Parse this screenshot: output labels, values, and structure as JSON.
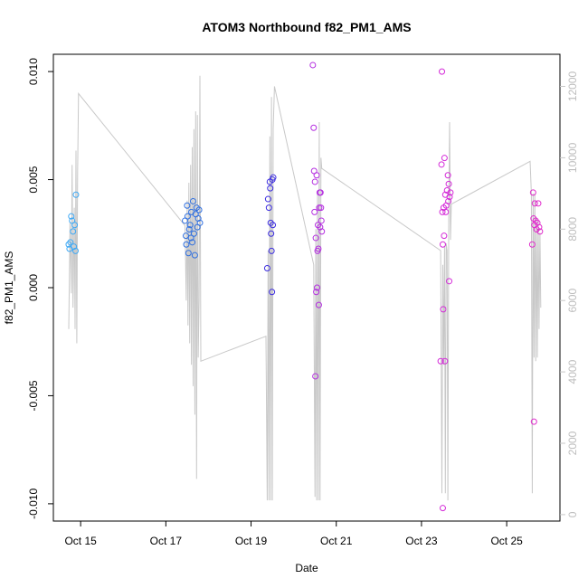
{
  "chart_data": {
    "type": "scatter",
    "title": "ATOM3 Northbound f82_PM1_AMS",
    "xlabel": "Date",
    "ylabel": "f82_PM1_AMS",
    "x_ticks": [
      {
        "label": "Oct 15",
        "day": 15
      },
      {
        "label": "Oct 17",
        "day": 17
      },
      {
        "label": "Oct 19",
        "day": 19
      },
      {
        "label": "Oct 21",
        "day": 21
      },
      {
        "label": "Oct 23",
        "day": 23
      },
      {
        "label": "Oct 25",
        "day": 25
      }
    ],
    "xlim": [
      14.36,
      26.25
    ],
    "ylim": [
      -0.0108,
      0.0108
    ],
    "y_ticks": [
      {
        "label": "-0.010",
        "value": -0.01
      },
      {
        "label": "-0.005",
        "value": -0.005
      },
      {
        "label": "0.000",
        "value": 0.0
      },
      {
        "label": "0.005",
        "value": 0.005
      },
      {
        "label": "0.010",
        "value": 0.01
      }
    ],
    "y2_ticks": [
      {
        "label": "0",
        "value": 0
      },
      {
        "label": "2000",
        "value": 2000
      },
      {
        "label": "4000",
        "value": 4000
      },
      {
        "label": "6000",
        "value": 6000
      },
      {
        "label": "8000",
        "value": 8000
      },
      {
        "label": "10000",
        "value": 10000
      },
      {
        "label": "12000",
        "value": 12000
      }
    ],
    "y2lim": [
      -180,
      12900
    ],
    "altitude_color": "#c8c8c8",
    "altitude_series": [
      [
        14.72,
        5200
      ],
      [
        14.75,
        8200
      ],
      [
        14.78,
        6200
      ],
      [
        14.8,
        9800
      ],
      [
        14.82,
        5800
      ],
      [
        14.85,
        8600
      ],
      [
        14.87,
        5200
      ],
      [
        14.89,
        10200
      ],
      [
        14.91,
        4800
      ],
      [
        14.93,
        9600
      ],
      [
        14.95,
        11800
      ],
      [
        17.45,
        8100
      ],
      [
        17.48,
        6000
      ],
      [
        17.5,
        8800
      ],
      [
        17.52,
        5300
      ],
      [
        17.54,
        9300
      ],
      [
        17.56,
        4800
      ],
      [
        17.58,
        9800
      ],
      [
        17.6,
        4200
      ],
      [
        17.62,
        10300
      ],
      [
        17.64,
        3600
      ],
      [
        17.66,
        10800
      ],
      [
        17.68,
        2800
      ],
      [
        17.7,
        11300
      ],
      [
        17.72,
        1000
      ],
      [
        17.74,
        11200
      ],
      [
        17.76,
        4400
      ],
      [
        17.78,
        6000
      ],
      [
        17.8,
        12300
      ],
      [
        17.82,
        4300
      ],
      [
        19.35,
        5000
      ],
      [
        19.38,
        400
      ],
      [
        19.4,
        7400
      ],
      [
        19.42,
        400
      ],
      [
        19.44,
        10600
      ],
      [
        19.46,
        400
      ],
      [
        19.48,
        11700
      ],
      [
        19.5,
        400
      ],
      [
        19.52,
        10800
      ],
      [
        19.55,
        12000
      ],
      [
        20.47,
        7000
      ],
      [
        20.5,
        500
      ],
      [
        20.52,
        8000
      ],
      [
        20.54,
        400
      ],
      [
        20.56,
        9000
      ],
      [
        20.58,
        400
      ],
      [
        20.6,
        11000
      ],
      [
        20.62,
        400
      ],
      [
        20.64,
        10000
      ],
      [
        20.66,
        9700
      ],
      [
        23.45,
        7400
      ],
      [
        23.48,
        600
      ],
      [
        23.5,
        7000
      ],
      [
        23.52,
        4200
      ],
      [
        23.54,
        7500
      ],
      [
        23.56,
        600
      ],
      [
        23.58,
        7600
      ],
      [
        23.6,
        7400
      ],
      [
        23.62,
        400
      ],
      [
        23.64,
        8600
      ],
      [
        23.66,
        11000
      ],
      [
        23.68,
        7700
      ],
      [
        23.7,
        8700
      ],
      [
        25.55,
        9900
      ],
      [
        25.58,
        9000
      ],
      [
        25.6,
        600
      ],
      [
        25.62,
        9000
      ],
      [
        25.64,
        4400
      ],
      [
        25.66,
        9000
      ],
      [
        25.68,
        4300
      ],
      [
        25.7,
        8300
      ],
      [
        25.72,
        4400
      ],
      [
        25.74,
        8200
      ],
      [
        25.76,
        5200
      ],
      [
        25.78,
        7900
      ],
      [
        25.8,
        5800
      ]
    ],
    "points": [
      {
        "x": 14.72,
        "y": 0.002,
        "color": "#3fa9f5"
      },
      {
        "x": 14.74,
        "y": 0.0018,
        "color": "#3fa9f5"
      },
      {
        "x": 14.76,
        "y": 0.0021,
        "color": "#3fa9f5"
      },
      {
        "x": 14.78,
        "y": 0.0033,
        "color": "#3fa9f5"
      },
      {
        "x": 14.8,
        "y": 0.0031,
        "color": "#3fa9f5"
      },
      {
        "x": 14.82,
        "y": 0.0026,
        "color": "#3fa9f5"
      },
      {
        "x": 14.84,
        "y": 0.0019,
        "color": "#3fa9f5"
      },
      {
        "x": 14.86,
        "y": 0.0029,
        "color": "#3fa9f5"
      },
      {
        "x": 14.88,
        "y": 0.0017,
        "color": "#3fa9f5"
      },
      {
        "x": 14.89,
        "y": 0.0043,
        "color": "#3fa9f5"
      },
      {
        "x": 17.45,
        "y": 0.0031,
        "color": "#2f6fe0"
      },
      {
        "x": 17.47,
        "y": 0.0024,
        "color": "#2f6fe0"
      },
      {
        "x": 17.48,
        "y": 0.002,
        "color": "#2f6fe0"
      },
      {
        "x": 17.5,
        "y": 0.0038,
        "color": "#2f6fe0"
      },
      {
        "x": 17.51,
        "y": 0.0033,
        "color": "#2f6fe0"
      },
      {
        "x": 17.53,
        "y": 0.0016,
        "color": "#2f6fe0"
      },
      {
        "x": 17.55,
        "y": 0.0027,
        "color": "#2f6fe0"
      },
      {
        "x": 17.57,
        "y": 0.0029,
        "color": "#2f6fe0"
      },
      {
        "x": 17.59,
        "y": 0.0023,
        "color": "#2f6fe0"
      },
      {
        "x": 17.6,
        "y": 0.0035,
        "color": "#2f6fe0"
      },
      {
        "x": 17.62,
        "y": 0.0021,
        "color": "#2f6fe0"
      },
      {
        "x": 17.64,
        "y": 0.004,
        "color": "#2f6fe0"
      },
      {
        "x": 17.66,
        "y": 0.0025,
        "color": "#2f6fe0"
      },
      {
        "x": 17.68,
        "y": 0.0015,
        "color": "#2f6fe0"
      },
      {
        "x": 17.7,
        "y": 0.0034,
        "color": "#2f6fe0"
      },
      {
        "x": 17.72,
        "y": 0.0037,
        "color": "#2f6fe0"
      },
      {
        "x": 17.74,
        "y": 0.0028,
        "color": "#2f6fe0"
      },
      {
        "x": 17.76,
        "y": 0.0032,
        "color": "#2f6fe0"
      },
      {
        "x": 17.78,
        "y": 0.0036,
        "color": "#2f6fe0"
      },
      {
        "x": 17.8,
        "y": 0.003,
        "color": "#2f6fe0"
      },
      {
        "x": 19.38,
        "y": 0.0009,
        "color": "#3c2de0"
      },
      {
        "x": 19.4,
        "y": 0.0041,
        "color": "#3c2de0"
      },
      {
        "x": 19.42,
        "y": 0.0037,
        "color": "#3c2de0"
      },
      {
        "x": 19.44,
        "y": 0.0049,
        "color": "#3c2de0"
      },
      {
        "x": 19.45,
        "y": 0.0046,
        "color": "#3c2de0"
      },
      {
        "x": 19.46,
        "y": 0.003,
        "color": "#3c2de0"
      },
      {
        "x": 19.47,
        "y": 0.0025,
        "color": "#3c2de0"
      },
      {
        "x": 19.48,
        "y": 0.0017,
        "color": "#3c2de0"
      },
      {
        "x": 19.49,
        "y": -0.0002,
        "color": "#3c2de0"
      },
      {
        "x": 19.5,
        "y": 0.005,
        "color": "#3c2de0"
      },
      {
        "x": 19.51,
        "y": 0.0029,
        "color": "#3c2de0"
      },
      {
        "x": 19.52,
        "y": 0.0051,
        "color": "#3c2de0"
      },
      {
        "x": 20.45,
        "y": 0.0103,
        "color": "#b42de0"
      },
      {
        "x": 20.47,
        "y": 0.0074,
        "color": "#b42de0"
      },
      {
        "x": 20.48,
        "y": 0.0054,
        "color": "#b42de0"
      },
      {
        "x": 20.49,
        "y": 0.0035,
        "color": "#b42de0"
      },
      {
        "x": 20.5,
        "y": 0.0049,
        "color": "#b42de0"
      },
      {
        "x": 20.51,
        "y": -0.0041,
        "color": "#b42de0"
      },
      {
        "x": 20.52,
        "y": 0.0023,
        "color": "#b42de0"
      },
      {
        "x": 20.53,
        "y": -0.0002,
        "color": "#b42de0"
      },
      {
        "x": 20.54,
        "y": 0.0052,
        "color": "#b42de0"
      },
      {
        "x": 20.55,
        "y": 0.0,
        "color": "#b42de0"
      },
      {
        "x": 20.56,
        "y": 0.0017,
        "color": "#b42de0"
      },
      {
        "x": 20.57,
        "y": 0.0029,
        "color": "#b42de0"
      },
      {
        "x": 20.58,
        "y": 0.0018,
        "color": "#b42de0"
      },
      {
        "x": 20.59,
        "y": -0.0008,
        "color": "#b42de0"
      },
      {
        "x": 20.6,
        "y": 0.0037,
        "color": "#b42de0"
      },
      {
        "x": 20.61,
        "y": 0.0044,
        "color": "#b42de0"
      },
      {
        "x": 20.62,
        "y": 0.0028,
        "color": "#b42de0"
      },
      {
        "x": 20.63,
        "y": 0.0044,
        "color": "#b42de0"
      },
      {
        "x": 20.64,
        "y": 0.0037,
        "color": "#b42de0"
      },
      {
        "x": 20.65,
        "y": 0.0031,
        "color": "#b42de0"
      },
      {
        "x": 20.66,
        "y": 0.0026,
        "color": "#b42de0"
      },
      {
        "x": 23.45,
        "y": -0.0034,
        "color": "#d42ad8"
      },
      {
        "x": 23.47,
        "y": 0.0057,
        "color": "#d42ad8"
      },
      {
        "x": 23.48,
        "y": 0.01,
        "color": "#d42ad8"
      },
      {
        "x": 23.49,
        "y": 0.0035,
        "color": "#d42ad8"
      },
      {
        "x": 23.5,
        "y": 0.002,
        "color": "#d42ad8"
      },
      {
        "x": 23.51,
        "y": -0.001,
        "color": "#d42ad8"
      },
      {
        "x": 23.52,
        "y": 0.0037,
        "color": "#d42ad8"
      },
      {
        "x": 23.53,
        "y": 0.0024,
        "color": "#d42ad8"
      },
      {
        "x": 23.54,
        "y": 0.006,
        "color": "#d42ad8"
      },
      {
        "x": 23.55,
        "y": -0.0034,
        "color": "#d42ad8"
      },
      {
        "x": 23.56,
        "y": 0.0043,
        "color": "#d42ad8"
      },
      {
        "x": 23.57,
        "y": 0.0035,
        "color": "#d42ad8"
      },
      {
        "x": 23.58,
        "y": 0.0038,
        "color": "#d42ad8"
      },
      {
        "x": 23.6,
        "y": 0.0045,
        "color": "#d42ad8"
      },
      {
        "x": 23.62,
        "y": 0.0052,
        "color": "#d42ad8"
      },
      {
        "x": 23.63,
        "y": 0.004,
        "color": "#d42ad8"
      },
      {
        "x": 23.64,
        "y": 0.0048,
        "color": "#d42ad8"
      },
      {
        "x": 23.65,
        "y": 0.0003,
        "color": "#d42ad8"
      },
      {
        "x": 23.66,
        "y": 0.0042,
        "color": "#d42ad8"
      },
      {
        "x": 23.68,
        "y": 0.0044,
        "color": "#d42ad8"
      },
      {
        "x": 23.5,
        "y": -0.0102,
        "color": "#d42ad8"
      },
      {
        "x": 25.6,
        "y": 0.002,
        "color": "#e02dcc"
      },
      {
        "x": 25.62,
        "y": 0.0044,
        "color": "#e02dcc"
      },
      {
        "x": 25.63,
        "y": 0.0032,
        "color": "#e02dcc"
      },
      {
        "x": 25.64,
        "y": -0.0062,
        "color": "#e02dcc"
      },
      {
        "x": 25.65,
        "y": 0.0029,
        "color": "#e02dcc"
      },
      {
        "x": 25.66,
        "y": 0.0039,
        "color": "#e02dcc"
      },
      {
        "x": 25.68,
        "y": 0.0031,
        "color": "#e02dcc"
      },
      {
        "x": 25.7,
        "y": 0.0027,
        "color": "#e02dcc"
      },
      {
        "x": 25.72,
        "y": 0.003,
        "color": "#e02dcc"
      },
      {
        "x": 25.74,
        "y": 0.0039,
        "color": "#e02dcc"
      },
      {
        "x": 25.76,
        "y": 0.0028,
        "color": "#e02dcc"
      },
      {
        "x": 25.78,
        "y": 0.0026,
        "color": "#e02dcc"
      }
    ]
  }
}
